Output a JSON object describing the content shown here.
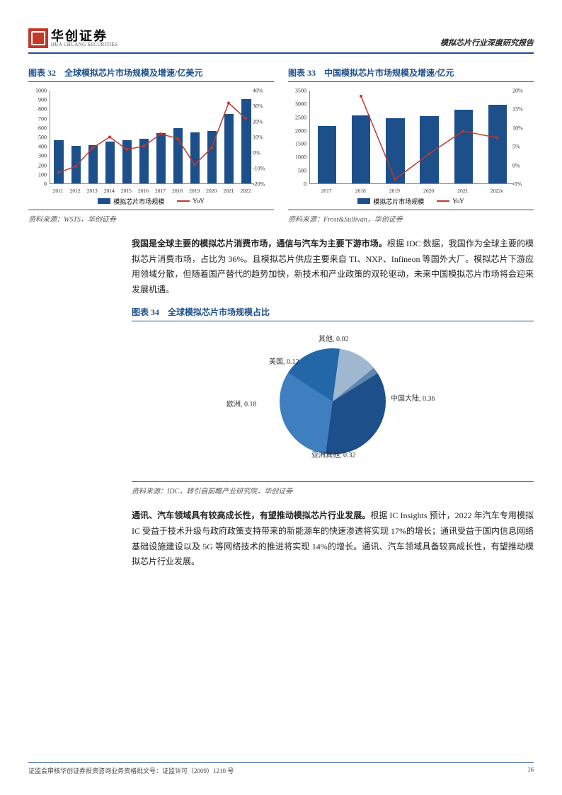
{
  "header": {
    "logo_cn": "华创证券",
    "logo_en": "HUA CHUANG SECURITIES",
    "doc_title": "模拟芯片行业深度研究报告"
  },
  "chart32": {
    "title": "图表 32　全球模拟芯片市场规模及增速/亿美元",
    "type": "bar+line",
    "categories": [
      "2011",
      "2012",
      "2013",
      "2014",
      "2015",
      "2016",
      "2017",
      "2018",
      "2019",
      "2020",
      "2021",
      "2022"
    ],
    "bar_values": [
      460,
      400,
      410,
      450,
      460,
      480,
      540,
      590,
      545,
      560,
      740,
      900
    ],
    "line_values": [
      -13,
      -9,
      3,
      10,
      2,
      4,
      12,
      9,
      -8,
      3,
      32,
      22
    ],
    "ylim": [
      0,
      1000
    ],
    "ytick_step": 100,
    "y2lim": [
      -20,
      40
    ],
    "y2tick_step": 10,
    "bar_color": "#1d4f8b",
    "line_color": "#c0392b",
    "legend_bar": "模拟芯片市场规模",
    "legend_line": "YoY",
    "source": "资料来源：WSTS，华创证券"
  },
  "chart33": {
    "title": "图表 33　中国模拟芯片市场规模及增速/亿元",
    "type": "bar+line",
    "categories": [
      "2017",
      "2018",
      "2019",
      "2020",
      "2021",
      "2022e"
    ],
    "bar_values": [
      2150,
      2550,
      2450,
      2520,
      2750,
      2950
    ],
    "line_values": [
      null,
      18.5,
      -3.9,
      2.9,
      9.1,
      7.3
    ],
    "ylim": [
      0,
      3500
    ],
    "ytick_step": 500,
    "y2lim": [
      -5,
      20
    ],
    "y2tick_step": 5,
    "bar_color": "#1d4f8b",
    "line_color": "#c0392b",
    "legend_bar": "模拟芯片市场规模",
    "legend_line": "YoY",
    "source": "资料来源：Frost&Sullivan，华创证券"
  },
  "para1": {
    "bold": "我国是全球主要的模拟芯片消费市场，通信与汽车为主要下游市场。",
    "rest": "根据 IDC 数据，我国作为全球主要的模拟芯片消费市场，占比为 36%。且模拟芯片供应主要来自 TI、NXP、Infineon 等国外大厂。模拟芯片下游应用领域分散，但随着国产替代的趋势加快，新技术和产业政策的双轮驱动，未来中国模拟芯片市场将会迎来发展机遇。"
  },
  "chart34": {
    "title": "图表 34　全球模拟芯片市场规模占比",
    "type": "pie",
    "slices": [
      {
        "label": "中国大陆, 0.36",
        "value": 0.36,
        "color": "#1d4f8b"
      },
      {
        "label": "亚洲其他, 0.32",
        "value": 0.32,
        "color": "#3f7fbf"
      },
      {
        "label": "欧洲, 0.18",
        "value": 0.18,
        "color": "#2367a8"
      },
      {
        "label": "美国, 0.12",
        "value": 0.12,
        "color": "#9fb8d0"
      },
      {
        "label": "其他, 0.02",
        "value": 0.02,
        "color": "#5d87b0"
      }
    ],
    "source": "资料来源：IDC，转引自前瞻产业研究院，华创证券"
  },
  "para2": {
    "bold": "通讯、汽车领域具有较高成长性，有望推动模拟芯片行业发展。",
    "rest": "根据 IC Insights 预计，2022 年汽车专用模拟 IC 受益于技术升级与政府政策支持带来的新能源车的快速渗透将实现 17%的增长；通讯受益于国内信息网络基础设施建设以及 5G 等网络技术的推进将实现 14%的增长。通讯、汽车领域具备较高成长性，有望推动模拟芯片行业发展。"
  },
  "footer": {
    "left": "证监会审核华创证券投资咨询业务资格批文号：证监许可（2009）1210 号",
    "page": "16"
  }
}
